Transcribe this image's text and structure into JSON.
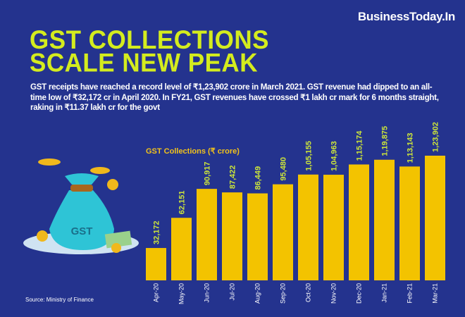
{
  "brand": "BusinessToday.In",
  "title": "GST COLLECTIONS SCALE NEW PEAK",
  "description": "GST receipts have reached a record level of ₹1,23,902 crore in March 2021. GST revenue had dipped to an all-time low of ₹32,172 cr in April 2020. In FY21, GST revenues have crossed ₹1 lakh cr mark for 6 months straight, raking in ₹11.37 lakh cr for the govt",
  "source": "Source: Ministry of Finance",
  "illustration": {
    "bag_label": "GST",
    "icon": "money-bag-with-coins"
  },
  "colors": {
    "background": "#24338e",
    "title": "#d4ec1e",
    "bar": "#f3c300",
    "data_label": "#cde63a"
  },
  "chart_data": {
    "type": "bar",
    "title": "GST Collections (₹ crore)",
    "categories": [
      "Apr-20",
      "May-20",
      "Jun-20",
      "Jul-20",
      "Aug-20",
      "Sep-20",
      "Oct-20",
      "Nov-20",
      "Dec-20",
      "Jan-21",
      "Feb-21",
      "Mar-21"
    ],
    "values": [
      32172,
      62151,
      90917,
      87422,
      86449,
      95480,
      105155,
      104963,
      115174,
      119875,
      113143,
      123902
    ],
    "data_labels": [
      "32,172",
      "62,151",
      "90,917",
      "87,422",
      "86,449",
      "95,480",
      "1,05,155",
      "1,04,963",
      "1,15,174",
      "1,19,875",
      "1,13,143",
      "1,23,902"
    ],
    "xlabel": "",
    "ylabel": "",
    "grid": false
  }
}
